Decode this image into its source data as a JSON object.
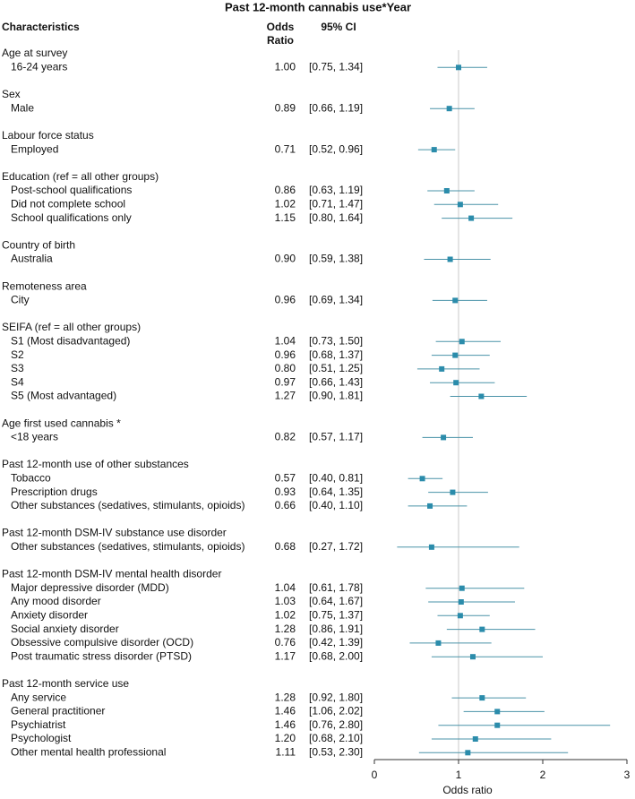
{
  "chart_data": {
    "type": "forest",
    "title": "Past 12-month cannabis use*Year",
    "column_headers": {
      "characteristics": "Characteristics",
      "odds_ratio": [
        "Odds",
        "Ratio"
      ],
      "ci": "95% CI"
    },
    "x_label": "Odds ratio",
    "xlim": [
      0,
      3
    ],
    "xticks": [
      0,
      1,
      2,
      3
    ],
    "reference_line": 1,
    "color": "#2b8cab",
    "line_color": "#4a93a8",
    "groups": [
      {
        "name": "Age at survey",
        "rows": [
          {
            "label": "16-24 years",
            "value": 1,
            "value_label": "1.00",
            "ci_low": 0.75,
            "ci_high": 1.34,
            "ci_label": "[0.75, 1.34]"
          }
        ]
      },
      {
        "name": "Sex",
        "rows": [
          {
            "label": "Male",
            "value": 0.89,
            "value_label": "0.89",
            "ci_low": 0.66,
            "ci_high": 1.19,
            "ci_label": "[0.66, 1.19]"
          }
        ]
      },
      {
        "name": "Labour force status",
        "rows": [
          {
            "label": "Employed",
            "value": 0.71,
            "value_label": "0.71",
            "ci_low": 0.52,
            "ci_high": 0.96,
            "ci_label": "[0.52, 0.96]"
          }
        ]
      },
      {
        "name": "Education (ref = all other groups)",
        "rows": [
          {
            "label": "Post-school qualifications",
            "value": 0.86,
            "value_label": "0.86",
            "ci_low": 0.63,
            "ci_high": 1.19,
            "ci_label": "[0.63, 1.19]"
          },
          {
            "label": "Did not complete school",
            "value": 1.02,
            "value_label": "1.02",
            "ci_low": 0.71,
            "ci_high": 1.47,
            "ci_label": "[0.71, 1.47]"
          },
          {
            "label": "School qualifications only",
            "value": 1.15,
            "value_label": "1.15",
            "ci_low": 0.8,
            "ci_high": 1.64,
            "ci_label": "[0.80, 1.64]"
          }
        ]
      },
      {
        "name": "Country of birth",
        "rows": [
          {
            "label": "Australia",
            "value": 0.9,
            "value_label": "0.90",
            "ci_low": 0.59,
            "ci_high": 1.38,
            "ci_label": "[0.59, 1.38]"
          }
        ]
      },
      {
        "name": "Remoteness area",
        "rows": [
          {
            "label": "City",
            "value": 0.96,
            "value_label": "0.96",
            "ci_low": 0.69,
            "ci_high": 1.34,
            "ci_label": "[0.69, 1.34]"
          }
        ]
      },
      {
        "name": "SEIFA (ref = all other groups)",
        "rows": [
          {
            "label": "S1 (Most disadvantaged)",
            "value": 1.04,
            "value_label": "1.04",
            "ci_low": 0.73,
            "ci_high": 1.5,
            "ci_label": "[0.73, 1.50]"
          },
          {
            "label": "S2",
            "value": 0.96,
            "value_label": "0.96",
            "ci_low": 0.68,
            "ci_high": 1.37,
            "ci_label": "[0.68, 1.37]"
          },
          {
            "label": "S3",
            "value": 0.8,
            "value_label": "0.80",
            "ci_low": 0.51,
            "ci_high": 1.25,
            "ci_label": "[0.51, 1.25]"
          },
          {
            "label": "S4",
            "value": 0.97,
            "value_label": "0.97",
            "ci_low": 0.66,
            "ci_high": 1.43,
            "ci_label": "[0.66, 1.43]"
          },
          {
            "label": "S5 (Most advantaged)",
            "value": 1.27,
            "value_label": "1.27",
            "ci_low": 0.9,
            "ci_high": 1.81,
            "ci_label": "[0.90, 1.81]"
          }
        ]
      },
      {
        "name": "Age first used cannabis *",
        "rows": [
          {
            "label": "<18 years",
            "value": 0.82,
            "value_label": "0.82",
            "ci_low": 0.57,
            "ci_high": 1.17,
            "ci_label": "[0.57, 1.17]"
          }
        ]
      },
      {
        "name": "Past 12-month use of other substances",
        "rows": [
          {
            "label": "Tobacco",
            "value": 0.57,
            "value_label": "0.57",
            "ci_low": 0.4,
            "ci_high": 0.81,
            "ci_label": "[0.40, 0.81]"
          },
          {
            "label": "Prescription drugs",
            "value": 0.93,
            "value_label": "0.93",
            "ci_low": 0.64,
            "ci_high": 1.35,
            "ci_label": "[0.64, 1.35]"
          },
          {
            "label": "Other substances (sedatives, stimulants, opioids)",
            "value": 0.66,
            "value_label": "0.66",
            "ci_low": 0.4,
            "ci_high": 1.1,
            "ci_label": "[0.40, 1.10]"
          }
        ]
      },
      {
        "name": "Past 12-month DSM-IV substance use disorder",
        "rows": [
          {
            "label": "Other substances (sedatives, stimulants, opioids)",
            "value": 0.68,
            "value_label": "0.68",
            "ci_low": 0.27,
            "ci_high": 1.72,
            "ci_label": "[0.27, 1.72]"
          }
        ]
      },
      {
        "name": "Past 12-month DSM-IV mental health disorder",
        "rows": [
          {
            "label": "Major depressive disorder (MDD)",
            "value": 1.04,
            "value_label": "1.04",
            "ci_low": 0.61,
            "ci_high": 1.78,
            "ci_label": "[0.61, 1.78]"
          },
          {
            "label": "Any mood disorder",
            "value": 1.03,
            "value_label": "1.03",
            "ci_low": 0.64,
            "ci_high": 1.67,
            "ci_label": "[0.64, 1.67]"
          },
          {
            "label": "Anxiety disorder",
            "value": 1.02,
            "value_label": "1.02",
            "ci_low": 0.75,
            "ci_high": 1.37,
            "ci_label": "[0.75, 1.37]"
          },
          {
            "label": "Social anxiety disorder",
            "value": 1.28,
            "value_label": "1.28",
            "ci_low": 0.86,
            "ci_high": 1.91,
            "ci_label": "[0.86, 1.91]"
          },
          {
            "label": "Obsessive compulsive disorder (OCD)",
            "value": 0.76,
            "value_label": "0.76",
            "ci_low": 0.42,
            "ci_high": 1.39,
            "ci_label": "[0.42, 1.39]"
          },
          {
            "label": "Post traumatic stress disorder (PTSD)",
            "value": 1.17,
            "value_label": "1.17",
            "ci_low": 0.68,
            "ci_high": 2,
            "ci_label": "[0.68, 2.00]"
          }
        ]
      },
      {
        "name": "Past 12-month service use",
        "rows": [
          {
            "label": "Any service",
            "value": 1.28,
            "value_label": "1.28",
            "ci_low": 0.92,
            "ci_high": 1.8,
            "ci_label": "[0.92, 1.80]"
          },
          {
            "label": "General practitioner",
            "value": 1.46,
            "value_label": "1.46",
            "ci_low": 1.06,
            "ci_high": 2.02,
            "ci_label": "[1.06, 2.02]"
          },
          {
            "label": "Psychiatrist",
            "value": 1.46,
            "value_label": "1.46",
            "ci_low": 0.76,
            "ci_high": 2.8,
            "ci_label": "[0.76, 2.80]"
          },
          {
            "label": "Psychologist",
            "value": 1.2,
            "value_label": "1.20",
            "ci_low": 0.68,
            "ci_high": 2.1,
            "ci_label": "[0.68, 2.10]"
          },
          {
            "label": "Other mental health professional",
            "value": 1.11,
            "value_label": "1.11",
            "ci_low": 0.53,
            "ci_high": 2.3,
            "ci_label": "[0.53, 2.30]"
          }
        ]
      }
    ]
  }
}
